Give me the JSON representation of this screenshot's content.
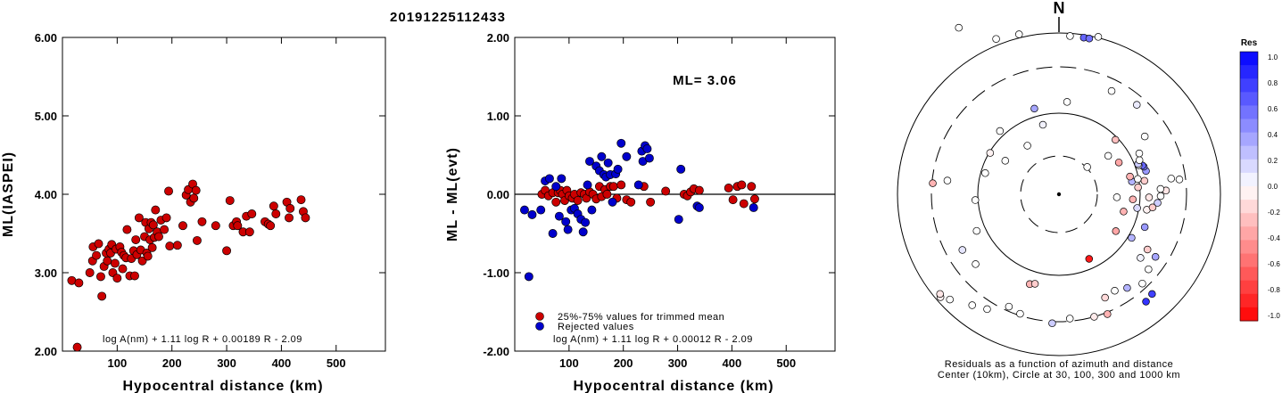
{
  "title": "20191225112433",
  "chart_data": [
    {
      "type": "scatter",
      "xlabel": "Hypocentral distance (km)",
      "ylabel": "ML(IASPEI)",
      "xlim": [
        0,
        590
      ],
      "ylim": [
        2.0,
        6.0
      ],
      "xticks": [
        "100",
        "200",
        "300",
        "400",
        "500"
      ],
      "xtick_values": [
        100,
        200,
        300,
        400,
        500
      ],
      "yticks": [
        "2.00",
        "3.00",
        "4.00",
        "5.00",
        "6.00"
      ],
      "ytick_values": [
        2.0,
        3.0,
        4.0,
        5.0,
        6.0
      ],
      "formula": "log A(nm) + 1.11 log R + 0.00189 R - 2.09",
      "point_color": "#cc0000",
      "points": [
        [
          27,
          2.05
        ],
        [
          17,
          2.9
        ],
        [
          30,
          2.87
        ],
        [
          50,
          3.0
        ],
        [
          55,
          3.15
        ],
        [
          56,
          3.33
        ],
        [
          62,
          3.22
        ],
        [
          66,
          3.37
        ],
        [
          70,
          2.95
        ],
        [
          72,
          2.7
        ],
        [
          76,
          3.08
        ],
        [
          80,
          3.25
        ],
        [
          82,
          3.15
        ],
        [
          85,
          3.3
        ],
        [
          88,
          3.25
        ],
        [
          90,
          3.36
        ],
        [
          92,
          3.0
        ],
        [
          96,
          3.12
        ],
        [
          98,
          3.3
        ],
        [
          100,
          2.93
        ],
        [
          105,
          3.33
        ],
        [
          108,
          3.26
        ],
        [
          110,
          3.05
        ],
        [
          112,
          3.22
        ],
        [
          116,
          3.19
        ],
        [
          118,
          3.55
        ],
        [
          123,
          2.96
        ],
        [
          126,
          3.18
        ],
        [
          130,
          3.28
        ],
        [
          132,
          2.96
        ],
        [
          134,
          3.42
        ],
        [
          136,
          3.23
        ],
        [
          140,
          3.7
        ],
        [
          143,
          3.29
        ],
        [
          146,
          3.15
        ],
        [
          150,
          3.46
        ],
        [
          152,
          3.64
        ],
        [
          154,
          3.25
        ],
        [
          156,
          3.21
        ],
        [
          158,
          3.56
        ],
        [
          160,
          3.42
        ],
        [
          162,
          3.64
        ],
        [
          164,
          3.32
        ],
        [
          166,
          3.61
        ],
        [
          168,
          3.45
        ],
        [
          170,
          3.8
        ],
        [
          173,
          3.52
        ],
        [
          176,
          3.46
        ],
        [
          180,
          3.67
        ],
        [
          186,
          3.55
        ],
        [
          190,
          3.7
        ],
        [
          194,
          4.04
        ],
        [
          196,
          3.34
        ],
        [
          210,
          3.35
        ],
        [
          220,
          3.6
        ],
        [
          226,
          3.99
        ],
        [
          230,
          4.06
        ],
        [
          234,
          3.9
        ],
        [
          238,
          4.13
        ],
        [
          240,
          3.95
        ],
        [
          244,
          4.05
        ],
        [
          246,
          3.41
        ],
        [
          255,
          3.65
        ],
        [
          280,
          3.6
        ],
        [
          300,
          3.28
        ],
        [
          306,
          3.92
        ],
        [
          312,
          3.6
        ],
        [
          318,
          3.65
        ],
        [
          320,
          3.6
        ],
        [
          330,
          3.52
        ],
        [
          336,
          3.72
        ],
        [
          342,
          3.52
        ],
        [
          346,
          3.75
        ],
        [
          370,
          3.65
        ],
        [
          376,
          3.62
        ],
        [
          380,
          3.6
        ],
        [
          386,
          3.85
        ],
        [
          390,
          3.75
        ],
        [
          410,
          3.9
        ],
        [
          414,
          3.7
        ],
        [
          416,
          3.82
        ],
        [
          436,
          3.93
        ],
        [
          440,
          3.78
        ],
        [
          444,
          3.7
        ]
      ]
    },
    {
      "type": "scatter",
      "xlabel": "Hypocentral distance (km)",
      "ylabel": "ML - ML(evt)",
      "xlim": [
        0,
        590
      ],
      "ylim": [
        -2.0,
        2.0
      ],
      "xticks": [
        "100",
        "200",
        "300",
        "400",
        "500"
      ],
      "xtick_values": [
        100,
        200,
        300,
        400,
        500
      ],
      "yticks": [
        "-2.00",
        "-1.00",
        "0.00",
        "1.00",
        "2.00"
      ],
      "ytick_values": [
        -2.0,
        -1.0,
        0.0,
        1.0,
        2.0
      ],
      "annotation": "ML= 3.06",
      "reference_line": 0.0,
      "formula": "log A(nm) + 1.11 log R + 0.00012 R - 2.09",
      "legend": [
        "25%-75% values for trimmed mean",
        "Rejected values"
      ],
      "series": [
        {
          "name": "25%-75% values for trimmed mean",
          "color": "#cc0000",
          "points": [
            [
              50,
              0.0
            ],
            [
              56,
              0.05
            ],
            [
              62,
              -0.02
            ],
            [
              70,
              0.02
            ],
            [
              76,
              -0.1
            ],
            [
              80,
              0.02
            ],
            [
              84,
              0.05
            ],
            [
              88,
              0.0
            ],
            [
              92,
              -0.08
            ],
            [
              96,
              0.05
            ],
            [
              100,
              -0.02
            ],
            [
              106,
              -0.05
            ],
            [
              110,
              0.0
            ],
            [
              116,
              -0.08
            ],
            [
              122,
              0.02
            ],
            [
              128,
              0.0
            ],
            [
              132,
              -0.05
            ],
            [
              138,
              0.03
            ],
            [
              144,
              0.0
            ],
            [
              150,
              -0.06
            ],
            [
              156,
              0.1
            ],
            [
              160,
              -0.03
            ],
            [
              166,
              0.06
            ],
            [
              170,
              0.0
            ],
            [
              176,
              0.1
            ],
            [
              182,
              0.1
            ],
            [
              188,
              -0.05
            ],
            [
              196,
              0.12
            ],
            [
              206,
              -0.07
            ],
            [
              214,
              -0.1
            ],
            [
              238,
              0.1
            ],
            [
              250,
              -0.1
            ],
            [
              278,
              0.04
            ],
            [
              312,
              0.0
            ],
            [
              318,
              -0.02
            ],
            [
              324,
              0.03
            ],
            [
              330,
              0.07
            ],
            [
              340,
              0.05
            ],
            [
              394,
              0.08
            ],
            [
              402,
              -0.07
            ],
            [
              410,
              0.1
            ],
            [
              418,
              0.12
            ],
            [
              422,
              -0.12
            ],
            [
              436,
              0.1
            ],
            [
              442,
              -0.06
            ]
          ]
        },
        {
          "name": "Rejected values",
          "color": "#0000cc",
          "points": [
            [
              26,
              -1.05
            ],
            [
              18,
              -0.2
            ],
            [
              32,
              -0.26
            ],
            [
              48,
              -0.2
            ],
            [
              56,
              0.17
            ],
            [
              64,
              0.2
            ],
            [
              70,
              -0.5
            ],
            [
              76,
              0.1
            ],
            [
              82,
              -0.28
            ],
            [
              86,
              0.2
            ],
            [
              94,
              -0.35
            ],
            [
              98,
              -0.45
            ],
            [
              104,
              -0.2
            ],
            [
              110,
              -0.18
            ],
            [
              116,
              -0.25
            ],
            [
              122,
              -0.32
            ],
            [
              126,
              -0.48
            ],
            [
              130,
              -0.36
            ],
            [
              134,
              0.12
            ],
            [
              138,
              0.42
            ],
            [
              142,
              -0.2
            ],
            [
              150,
              0.36
            ],
            [
              156,
              0.3
            ],
            [
              160,
              0.48
            ],
            [
              164,
              0.25
            ],
            [
              168,
              0.22
            ],
            [
              172,
              0.4
            ],
            [
              176,
              0.25
            ],
            [
              180,
              -0.1
            ],
            [
              186,
              0.26
            ],
            [
              190,
              0.32
            ],
            [
              196,
              0.65
            ],
            [
              206,
              0.48
            ],
            [
              228,
              0.12
            ],
            [
              234,
              0.55
            ],
            [
              236,
              0.42
            ],
            [
              240,
              0.62
            ],
            [
              244,
              0.58
            ],
            [
              248,
              0.46
            ],
            [
              302,
              -0.32
            ],
            [
              306,
              0.32
            ],
            [
              336,
              -0.15
            ],
            [
              340,
              -0.17
            ],
            [
              440,
              -0.17
            ]
          ]
        }
      ]
    }
  ],
  "polar": {
    "north_label": "N",
    "caption_line1": "Residuals as a function of azimuth and distance",
    "caption_line2": "Center (10km), Circle at 30, 100, 300 and 1000 km",
    "legend_title": "Res",
    "legend_ticks": [
      "1.0",
      "0.8",
      "0.6",
      "0.4",
      "0.2",
      "0.0",
      "-0.2",
      "-0.4",
      "-0.6",
      "-0.8",
      "-1.0"
    ],
    "legend_values": [
      1.0,
      0.8,
      0.6,
      0.4,
      0.2,
      0.0,
      -0.2,
      -0.4,
      -0.6,
      -0.8,
      -1.0
    ],
    "stations": [
      {
        "az": 155,
        "dist": 80,
        "res": -0.9
      },
      {
        "az": 329,
        "dist": 218,
        "res": 0.0
      },
      {
        "az": 338,
        "dist": 188,
        "res": 0.02
      },
      {
        "az": 346,
        "dist": 185,
        "res": 0.0
      },
      {
        "az": 4,
        "dist": 178,
        "res": 0.02
      },
      {
        "az": 9,
        "dist": 178,
        "res": 0.6
      },
      {
        "az": 11,
        "dist": 178,
        "res": 0.55
      },
      {
        "az": 14,
        "dist": 182,
        "res": 0.0
      },
      {
        "az": 27,
        "dist": 130,
        "res": 0.02
      },
      {
        "az": 344,
        "dist": 100,
        "res": 0.35
      },
      {
        "az": 347,
        "dist": 80,
        "res": 0.05
      },
      {
        "az": 5,
        "dist": 104,
        "res": 0.02
      },
      {
        "az": 41,
        "dist": 133,
        "res": 0.08
      },
      {
        "az": 317,
        "dist": 97,
        "res": 0.02
      },
      {
        "az": 301,
        "dist": 90,
        "res": -0.05
      },
      {
        "az": 286,
        "dist": 86,
        "res": 0.0
      },
      {
        "az": 266,
        "dist": 94,
        "res": 0.02
      },
      {
        "az": 240,
        "dist": 125,
        "res": 0.1
      },
      {
        "az": 230,
        "dist": 122,
        "res": 0.0
      },
      {
        "az": 275,
        "dist": 142,
        "res": -0.3
      },
      {
        "az": 229,
        "dist": 176,
        "res": -0.05
      },
      {
        "az": 230,
        "dist": 174,
        "res": -0.1
      },
      {
        "az": 226,
        "dist": 170,
        "res": 0.02
      },
      {
        "az": 218,
        "dist": 158,
        "res": 0.0
      },
      {
        "az": 212,
        "dist": 152,
        "res": 0.0
      },
      {
        "az": 204,
        "dist": 138,
        "res": 0.0
      },
      {
        "az": 198,
        "dist": 141,
        "res": 0.02
      },
      {
        "az": 198,
        "dist": 106,
        "res": -0.3
      },
      {
        "az": 195,
        "dist": 104,
        "res": -0.2
      },
      {
        "az": 183,
        "dist": 145,
        "res": 0.2
      },
      {
        "az": 175,
        "dist": 140,
        "res": 0.02
      },
      {
        "az": 164,
        "dist": 143,
        "res": -0.08
      },
      {
        "az": 158,
        "dist": 145,
        "res": -0.3
      },
      {
        "az": 156,
        "dist": 127,
        "res": -0.15
      },
      {
        "az": 150,
        "dist": 125,
        "res": 0.02
      },
      {
        "az": 144,
        "dist": 130,
        "res": 0.3
      },
      {
        "az": 137,
        "dist": 137,
        "res": 0.02
      },
      {
        "az": 130,
        "dist": 131,
        "res": 0.02
      },
      {
        "az": 128,
        "dist": 116,
        "res": 0.05
      },
      {
        "az": 141,
        "dist": 155,
        "res": 0.8
      },
      {
        "az": 137,
        "dist": 153,
        "res": 0.75
      },
      {
        "az": 123,
        "dist": 129,
        "res": 0.35
      },
      {
        "az": 122,
        "dist": 117,
        "res": -0.2
      },
      {
        "az": 121,
        "dist": 95,
        "res": 0.3
      },
      {
        "az": 111,
        "dist": 103,
        "res": 0.4
      },
      {
        "az": 100,
        "dist": 100,
        "res": -0.05
      },
      {
        "az": 105,
        "dist": 75,
        "res": -0.3
      },
      {
        "az": 100,
        "dist": 89,
        "res": 0.15
      },
      {
        "az": 98,
        "dist": 106,
        "res": -0.2
      },
      {
        "az": 95,
        "dist": 111,
        "res": 0.2
      },
      {
        "az": 94,
        "dist": 83,
        "res": -0.3
      },
      {
        "az": 93,
        "dist": 65,
        "res": 0.0
      },
      {
        "az": 92,
        "dist": 101,
        "res": -0.1
      },
      {
        "az": 91,
        "dist": 114,
        "res": 0.0
      },
      {
        "az": 88,
        "dist": 120,
        "res": -0.1
      },
      {
        "az": 87,
        "dist": 114,
        "res": 0.0
      },
      {
        "az": 85,
        "dist": 89,
        "res": -0.2
      },
      {
        "az": 83,
        "dist": 136,
        "res": 0.02
      },
      {
        "az": 82,
        "dist": 127,
        "res": 0.0
      },
      {
        "az": 81,
        "dist": 97,
        "res": -0.2
      },
      {
        "az": 80,
        "dist": 83,
        "res": 0.3
      },
      {
        "az": 79,
        "dist": 90,
        "res": 0.0
      },
      {
        "az": 76,
        "dist": 82,
        "res": -0.3
      },
      {
        "az": 75,
        "dist": 101,
        "res": 0.4
      },
      {
        "az": 72,
        "dist": 100,
        "res": 0.5
      },
      {
        "az": 71,
        "dist": 99,
        "res": 0.6
      },
      {
        "az": 70,
        "dist": 95,
        "res": 0.02
      },
      {
        "az": 69,
        "dist": 95,
        "res": 0.2
      },
      {
        "az": 67,
        "dist": 98,
        "res": 0.02
      },
      {
        "az": 63,
        "dist": 101,
        "res": 0.02
      },
      {
        "az": 62,
        "dist": 76,
        "res": -0.35
      },
      {
        "az": 56,
        "dist": 116,
        "res": 0.02
      },
      {
        "az": 52,
        "dist": 70,
        "res": 0.02
      },
      {
        "az": 46,
        "dist": 88,
        "res": -0.25
      },
      {
        "az": 327,
        "dist": 65,
        "res": 0.02
      },
      {
        "az": 302,
        "dist": 71,
        "res": 0.02
      },
      {
        "az": 46,
        "dist": 44,
        "res": 0.02
      },
      {
        "az": 277,
        "dist": 126,
        "res": 0.0
      },
      {
        "az": 246,
        "dist": 101,
        "res": 0.02
      },
      {
        "az": 123,
        "dist": 76,
        "res": -0.35
      }
    ]
  }
}
